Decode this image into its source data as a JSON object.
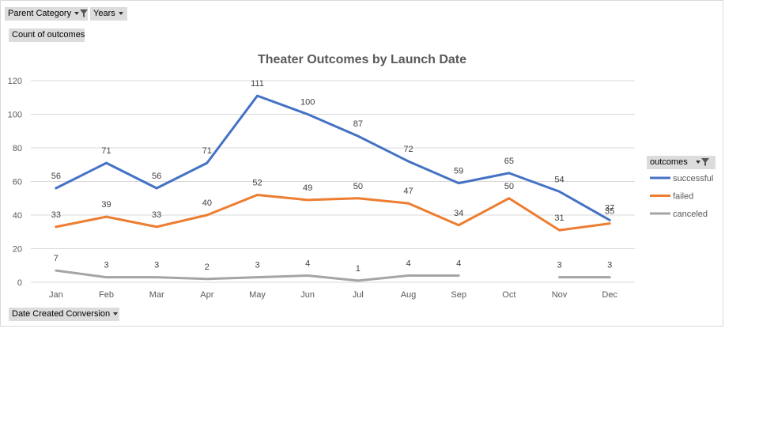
{
  "filters": {
    "parent_category": "Parent Category",
    "years": "Years",
    "count_of_outcomes": "Count of outcomes",
    "date_created_conversion": "Date Created Conversion"
  },
  "legend_header": "outcomes",
  "icons": [
    "dropdown-arrow-icon",
    "filter-funnel-icon"
  ],
  "colors": {
    "successful": "#4472C4",
    "failed": "#ED7D31",
    "canceled": "#A5A5A5",
    "grid": "#d9d9d9"
  },
  "chart_data": {
    "type": "line",
    "title": "Theater Outcomes by Launch Date",
    "xlabel": "",
    "ylabel": "",
    "categories": [
      "Jan",
      "Feb",
      "Mar",
      "Apr",
      "May",
      "Jun",
      "Jul",
      "Aug",
      "Sep",
      "Oct",
      "Nov",
      "Dec"
    ],
    "ylim": [
      0,
      120
    ],
    "yticks": [
      0,
      20,
      40,
      60,
      80,
      100,
      120
    ],
    "grid": true,
    "legend": "right",
    "series": [
      {
        "name": "successful",
        "values": [
          56,
          71,
          56,
          71,
          111,
          100,
          87,
          72,
          59,
          65,
          54,
          37
        ]
      },
      {
        "name": "failed",
        "values": [
          33,
          39,
          33,
          40,
          52,
          49,
          50,
          47,
          34,
          50,
          31,
          35
        ]
      },
      {
        "name": "canceled",
        "values": [
          7,
          3,
          3,
          2,
          3,
          4,
          1,
          4,
          4,
          null,
          3,
          3
        ]
      }
    ]
  }
}
